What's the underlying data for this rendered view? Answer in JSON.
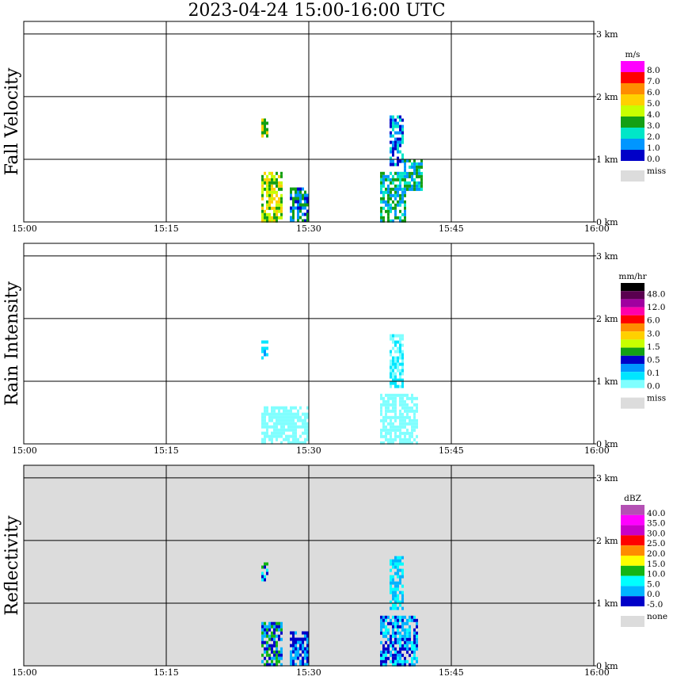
{
  "title": "2023-04-24   15:00-16:00 UTC",
  "x_ticks": [
    "15:00",
    "15:15",
    "15:30",
    "15:45",
    "16:00"
  ],
  "y_ticks": [
    "0 km",
    "1 km",
    "2 km",
    "3 km"
  ],
  "chart_data": [
    {
      "type": "heatmap",
      "ylabel": "Fall Velocity",
      "units": "m/s",
      "background": "#ffffff",
      "legend": {
        "labels": [
          "8.0",
          "7.0",
          "6.0",
          "5.0",
          "4.0",
          "3.0",
          "2.0",
          "1.0",
          "0.0"
        ],
        "colors": [
          "#ff00ff",
          "#ff0000",
          "#ff8c00",
          "#ffd000",
          "#c8ff00",
          "#14a014",
          "#00e6c8",
          "#0096ff",
          "#0000c8"
        ],
        "miss_label": "miss",
        "miss_color": "#dcdcdc"
      },
      "echoes": [
        {
          "t": [
            25.0,
            25.6
          ],
          "z": [
            1.35,
            1.65
          ],
          "colors": [
            "#14a014",
            "#ffd000"
          ]
        },
        {
          "t": [
            25.0,
            27.2
          ],
          "z": [
            0.0,
            0.8
          ],
          "colors": [
            "#14a014",
            "#ffd000",
            "#c8ff00"
          ]
        },
        {
          "t": [
            28.0,
            30.0
          ],
          "z": [
            0.0,
            0.55
          ],
          "colors": [
            "#0096ff",
            "#14a014",
            "#0000c8"
          ]
        },
        {
          "t": [
            37.5,
            40.2
          ],
          "z": [
            0.0,
            0.8
          ],
          "colors": [
            "#14a014",
            "#0096ff",
            "#00e6c8"
          ]
        },
        {
          "t": [
            38.5,
            40.0
          ],
          "z": [
            0.9,
            1.75
          ],
          "colors": [
            "#0096ff",
            "#00e6c8",
            "#0000c8"
          ]
        },
        {
          "t": [
            40.0,
            42.0
          ],
          "z": [
            0.5,
            1.0
          ],
          "colors": [
            "#0096ff",
            "#00e6c8",
            "#14a014"
          ]
        }
      ]
    },
    {
      "type": "heatmap",
      "ylabel": "Rain Intensity",
      "units": "mm/hr",
      "background": "#ffffff",
      "legend": {
        "labels": [
          "48.0",
          "12.0",
          "6.0",
          "3.0",
          "1.5",
          "0.5",
          "0.1",
          "0.0"
        ],
        "colors": [
          "#000000",
          "#5a0050",
          "#a000a0",
          "#ff00aa",
          "#ff0000",
          "#ff8c00",
          "#ffd000",
          "#c8ff00",
          "#14a014",
          "#0000c8",
          "#0096ff",
          "#00e6ff",
          "#80ffff"
        ],
        "miss_label": "miss",
        "miss_color": "#dcdcdc"
      },
      "echoes": [
        {
          "t": [
            25.0,
            25.6
          ],
          "z": [
            1.35,
            1.65
          ],
          "colors": [
            "#0096ff",
            "#00e6ff"
          ]
        },
        {
          "t": [
            25.0,
            30.0
          ],
          "z": [
            0.0,
            0.6
          ],
          "colors": [
            "#80ffff"
          ]
        },
        {
          "t": [
            37.5,
            41.5
          ],
          "z": [
            0.0,
            0.8
          ],
          "colors": [
            "#80ffff"
          ]
        },
        {
          "t": [
            38.5,
            40.0
          ],
          "z": [
            0.9,
            1.75
          ],
          "colors": [
            "#80ffff",
            "#00e6ff"
          ]
        }
      ]
    },
    {
      "type": "heatmap",
      "ylabel": "Reflectivity",
      "units": "dBZ",
      "background": "#dcdcdc",
      "legend": {
        "labels": [
          "40.0",
          "35.0",
          "30.0",
          "25.0",
          "20.0",
          "15.0",
          "10.0",
          "5.0",
          "0.0",
          "-5.0"
        ],
        "colors": [
          "#b450b4",
          "#ff00ff",
          "#c800c8",
          "#ff0000",
          "#ff8c00",
          "#ffff00",
          "#14b414",
          "#00ffff",
          "#00b4ff",
          "#0000c8"
        ],
        "miss_label": "none",
        "miss_color": "#dcdcdc"
      },
      "echoes": [
        {
          "t": [
            25.0,
            25.6
          ],
          "z": [
            1.35,
            1.65
          ],
          "colors": [
            "#14b414",
            "#00ffff",
            "#0000c8"
          ]
        },
        {
          "t": [
            25.0,
            27.2
          ],
          "z": [
            0.0,
            0.7
          ],
          "colors": [
            "#00b4ff",
            "#0000c8",
            "#14b414"
          ]
        },
        {
          "t": [
            28.0,
            30.0
          ],
          "z": [
            0.0,
            0.55
          ],
          "colors": [
            "#00b4ff",
            "#0000c8"
          ]
        },
        {
          "t": [
            37.5,
            41.5
          ],
          "z": [
            0.0,
            0.8
          ],
          "colors": [
            "#00b4ff",
            "#00ffff",
            "#0000c8"
          ]
        },
        {
          "t": [
            38.5,
            40.0
          ],
          "z": [
            0.9,
            1.75
          ],
          "colors": [
            "#00b4ff",
            "#00ffff"
          ]
        }
      ]
    }
  ]
}
